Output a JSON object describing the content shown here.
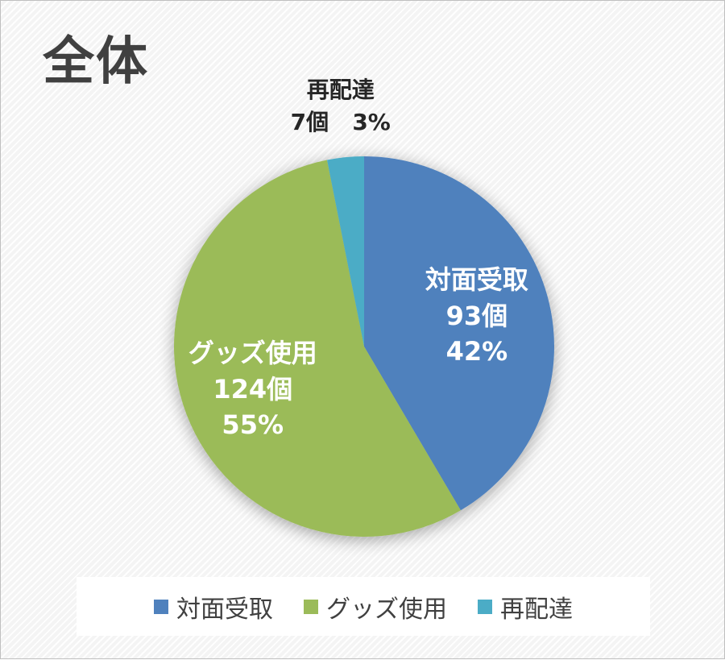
{
  "chart_data": {
    "type": "pie",
    "title": "全体",
    "unit": "個",
    "categories": [
      "対面受取",
      "グッズ使用",
      "再配達"
    ],
    "values": [
      93,
      124,
      7
    ],
    "percent_labels": [
      "42%",
      "55%",
      "3%"
    ],
    "count_labels": [
      "93個",
      "124個",
      "7個"
    ],
    "colors": [
      "#4f81bd",
      "#9bbb59",
      "#4bacc6"
    ],
    "start_angle_deg": 0,
    "direction": "clockwise",
    "legend_position": "bottom"
  }
}
